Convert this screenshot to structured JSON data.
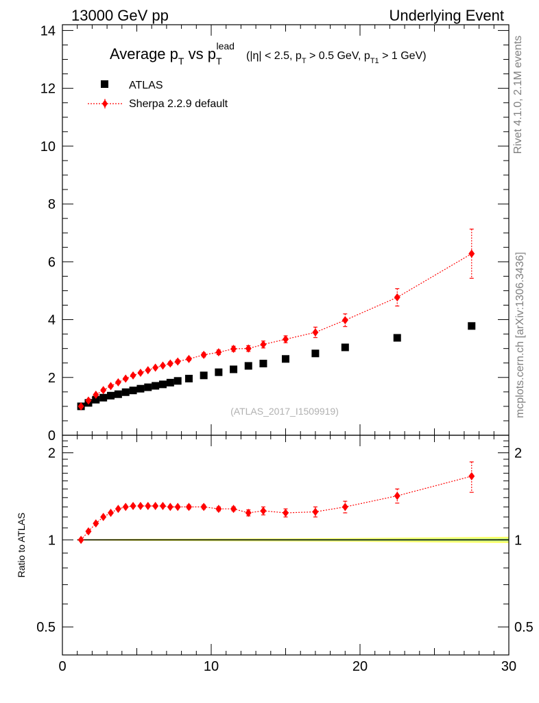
{
  "header": {
    "left": "13000 GeV pp",
    "right": "Underlying Event"
  },
  "side_labels": {
    "rivet": "Rivet 4.1.0,  2.1M events",
    "mcplots": "mcplots.cern.ch [arXiv:1306.3436]"
  },
  "title": {
    "part1": "Average p",
    "sub_t": "T",
    "part2": " vs p",
    "sub_t2": "T",
    "sup_lead": "lead",
    "cuts1": "(|η| < 2.5, p",
    "cuts_sub1": "T",
    "cuts2": " > 0.5 GeV, p",
    "cuts_sub2": "T1",
    "cuts3": " > 1 GeV)"
  },
  "analysis_id": "(ATLAS_2017_I1509919)",
  "legend": {
    "data": "ATLAS",
    "mc": "Sherpa 2.2.9 default"
  },
  "ratio_ylabel": "Ratio to ATLAS",
  "colors": {
    "mc": "#ff0000",
    "data": "#000000",
    "band_inner": "#ffff66",
    "band_outer": "#ccff88"
  },
  "chart_data": [
    {
      "type": "scatter",
      "title": "Average pT vs pT lead",
      "xlabel": "",
      "ylabel": "",
      "xlim": [
        0,
        30
      ],
      "ylim": [
        0,
        14.2
      ],
      "yticks": [
        0,
        2,
        4,
        6,
        8,
        10,
        12,
        14
      ],
      "xticks": [
        0,
        10,
        20,
        30
      ],
      "series": [
        {
          "name": "ATLAS",
          "x": [
            1.25,
            1.75,
            2.25,
            2.75,
            3.25,
            3.75,
            4.25,
            4.75,
            5.25,
            5.75,
            6.25,
            6.75,
            7.25,
            7.75,
            8.5,
            9.5,
            10.5,
            11.5,
            12.5,
            13.5,
            15.0,
            17.0,
            19.0,
            22.5,
            27.5
          ],
          "y": [
            1.0,
            1.12,
            1.23,
            1.3,
            1.37,
            1.42,
            1.49,
            1.55,
            1.61,
            1.66,
            1.71,
            1.76,
            1.82,
            1.88,
            1.96,
            2.07,
            2.18,
            2.28,
            2.4,
            2.48,
            2.64,
            2.83,
            3.04,
            3.37,
            3.78
          ]
        },
        {
          "name": "Sherpa 2.2.9 default",
          "x": [
            1.25,
            1.75,
            2.25,
            2.75,
            3.25,
            3.75,
            4.25,
            4.75,
            5.25,
            5.75,
            6.25,
            6.75,
            7.25,
            7.75,
            8.5,
            9.5,
            10.5,
            11.5,
            12.5,
            13.5,
            15.0,
            17.0,
            19.0,
            22.5,
            27.5
          ],
          "y": [
            1.0,
            1.2,
            1.4,
            1.56,
            1.7,
            1.83,
            1.96,
            2.07,
            2.16,
            2.25,
            2.34,
            2.41,
            2.48,
            2.55,
            2.64,
            2.78,
            2.87,
            2.99,
            3.0,
            3.14,
            3.32,
            3.56,
            3.98,
            4.77,
            6.28
          ],
          "err": [
            0.02,
            0.02,
            0.03,
            0.03,
            0.03,
            0.04,
            0.04,
            0.04,
            0.04,
            0.05,
            0.05,
            0.05,
            0.06,
            0.06,
            0.06,
            0.07,
            0.08,
            0.09,
            0.1,
            0.12,
            0.12,
            0.18,
            0.22,
            0.3,
            0.85
          ]
        }
      ]
    },
    {
      "type": "scatter",
      "title": "Ratio to ATLAS",
      "ylabel": "Ratio to ATLAS",
      "xlim": [
        0,
        30
      ],
      "ylim": [
        0.4,
        2.3
      ],
      "yticks": [
        0.5,
        1,
        2
      ],
      "yscale": "log",
      "series": [
        {
          "name": "Sherpa 2.2.9 default / ATLAS",
          "x": [
            1.25,
            1.75,
            2.25,
            2.75,
            3.25,
            3.75,
            4.25,
            4.75,
            5.25,
            5.75,
            6.25,
            6.75,
            7.25,
            7.75,
            8.5,
            9.5,
            10.5,
            11.5,
            12.5,
            13.5,
            15.0,
            17.0,
            19.0,
            22.5,
            27.5
          ],
          "y": [
            1.0,
            1.07,
            1.14,
            1.2,
            1.24,
            1.28,
            1.3,
            1.31,
            1.31,
            1.31,
            1.31,
            1.31,
            1.3,
            1.3,
            1.3,
            1.3,
            1.28,
            1.28,
            1.24,
            1.26,
            1.24,
            1.25,
            1.3,
            1.42,
            1.66
          ],
          "err": [
            0.01,
            0.01,
            0.01,
            0.01,
            0.01,
            0.01,
            0.01,
            0.01,
            0.01,
            0.01,
            0.01,
            0.01,
            0.01,
            0.01,
            0.02,
            0.02,
            0.02,
            0.02,
            0.03,
            0.04,
            0.04,
            0.05,
            0.06,
            0.08,
            0.2
          ]
        }
      ],
      "band": {
        "x": [
          1.0,
          5,
          10,
          15,
          20,
          25,
          30
        ],
        "err": [
          0.005,
          0.008,
          0.01,
          0.012,
          0.015,
          0.02,
          0.025
        ]
      }
    }
  ]
}
